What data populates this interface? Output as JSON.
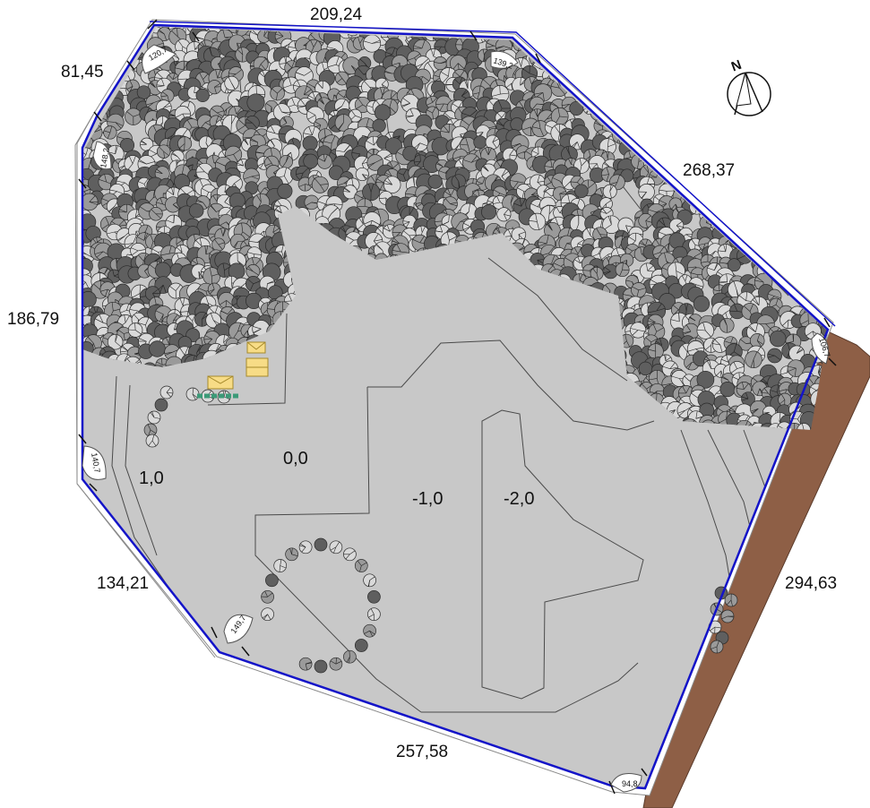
{
  "map": {
    "north": "N",
    "edge_lengths": [
      "209,24",
      "81,45",
      "268,37",
      "186,79",
      "134,21",
      "257,58",
      "294,63"
    ],
    "contour_levels": [
      "0,0",
      "1,0",
      "-1,0",
      "-2,0"
    ],
    "corner_angles": [
      "120,7",
      "139,2",
      "148,2",
      "106,7",
      "140,7",
      "149,7",
      "94,8"
    ],
    "colors": {
      "parcel_fill": "#c8c8c8",
      "boundary": "#1414c8",
      "road": "#8e5f46",
      "tree_dark": "#5f5f5f",
      "tree_light": "#d9d9d9",
      "building": "#f7dc86",
      "hedge": "#3c9a78"
    },
    "icons": [
      "north-arrow-icon",
      "tree-icon",
      "building-icon"
    ]
  }
}
